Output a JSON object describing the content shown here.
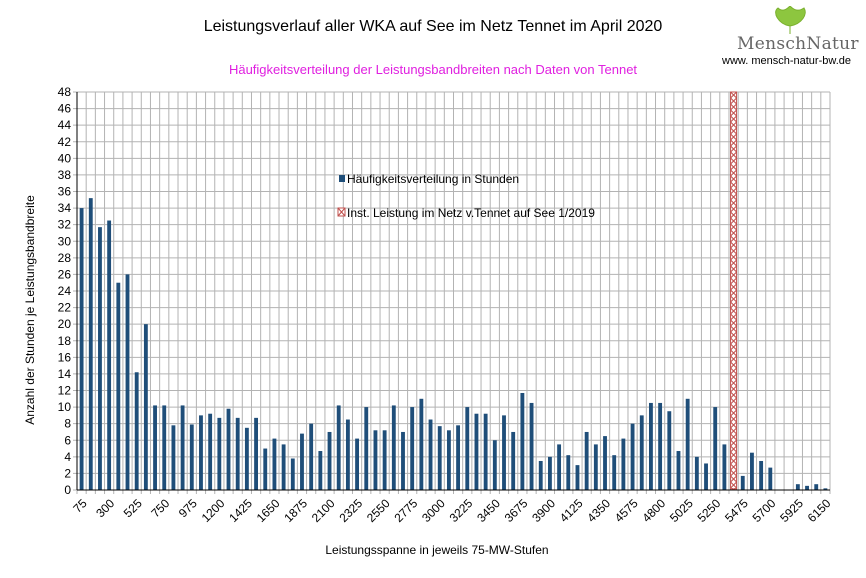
{
  "header": {
    "logo_name": "MenschNatur",
    "logo_url": "www. mensch-natur-bw.de"
  },
  "colors": {
    "bar": "#1f4e79",
    "marker": "#c0504d",
    "subtitle": "#e020e0",
    "grid": "#b3b3b3"
  },
  "chart_data": {
    "type": "bar",
    "title": "Leistungsverlauf aller WKA auf See im Netz Tennet im April 2020",
    "subtitle": "Häufigkeitsverteilung der Leistungsbandbreiten nach Daten von Tennet",
    "xlabel": "Leistungsspanne in jeweils 75-MW-Stufen",
    "ylabel": "Anzahl der Stunden je Leistungsbandbreite",
    "ylim": [
      0,
      48
    ],
    "ytick_step": 2,
    "x_start": 75,
    "x_step": 75,
    "x_count": 82,
    "x_tick_every": 3,
    "legend": {
      "series_label": "Häufigkeitsverteilung in Stunden",
      "marker_label": "Inst. Leistung im Netz v.Tennet auf See 1/2019"
    },
    "marker": {
      "x": 5400,
      "height": 48,
      "label": "Inst. Leistung im Netz v.Tennet auf See 1/2019"
    },
    "series": [
      {
        "name": "Häufigkeitsverteilung in Stunden",
        "values": [
          34,
          35.2,
          31.7,
          32.5,
          25,
          26,
          14.2,
          20,
          10.2,
          10.2,
          7.8,
          10.2,
          7.9,
          9,
          9.2,
          8.7,
          9.8,
          8.7,
          7.5,
          8.7,
          5,
          6.2,
          5.5,
          3.8,
          6.8,
          8,
          4.7,
          7,
          10.2,
          8.5,
          6.2,
          10,
          7.2,
          7.2,
          10.2,
          7,
          10,
          11,
          8.5,
          7.7,
          7.2,
          7.8,
          10,
          9.2,
          9.2,
          6,
          9,
          7,
          11.7,
          10.5,
          3.5,
          4,
          5.5,
          4.2,
          3,
          7,
          5.5,
          6.5,
          4.2,
          6.2,
          8,
          9,
          10.5,
          10.5,
          9.5,
          4.7,
          11,
          4,
          3.2,
          10,
          5.5,
          4,
          1.7,
          4.5,
          3.5,
          2.7,
          0,
          0,
          0.7,
          0.5,
          0.7,
          0.2
        ]
      }
    ]
  }
}
